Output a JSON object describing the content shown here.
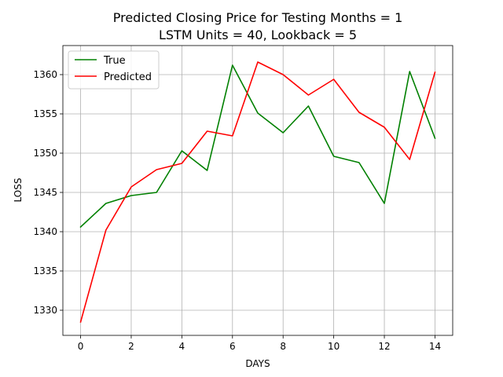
{
  "chart_data": {
    "type": "line",
    "title": "Predicted Closing Price for Testing Months = 1",
    "subtitle": "LSTM Units = 40, Lookback = 5",
    "xlabel": "DAYS",
    "ylabel": "LOSS",
    "xlim": [
      -0.7,
      14.7
    ],
    "ylim": [
      1326.8,
      1363.7
    ],
    "xticks": [
      0,
      2,
      4,
      6,
      8,
      10,
      12,
      14
    ],
    "yticks": [
      1330,
      1335,
      1340,
      1345,
      1350,
      1355,
      1360
    ],
    "grid": true,
    "legend_position": "top-left",
    "x": [
      0,
      1,
      2,
      3,
      4,
      5,
      6,
      7,
      8,
      9,
      10,
      11,
      12,
      13,
      14
    ],
    "series": [
      {
        "name": "True",
        "color": "#008000",
        "values": [
          1340.6,
          1343.6,
          1344.6,
          1345.0,
          1350.3,
          1347.8,
          1361.2,
          1355.1,
          1352.6,
          1356.0,
          1349.6,
          1348.8,
          1343.6,
          1360.4,
          1351.9
        ]
      },
      {
        "name": "Predicted",
        "color": "#ff0000",
        "values": [
          1328.5,
          1340.2,
          1345.7,
          1347.9,
          1348.7,
          1352.8,
          1352.2,
          1361.6,
          1360.0,
          1357.4,
          1359.4,
          1355.2,
          1353.3,
          1349.2,
          1360.3
        ]
      }
    ]
  }
}
